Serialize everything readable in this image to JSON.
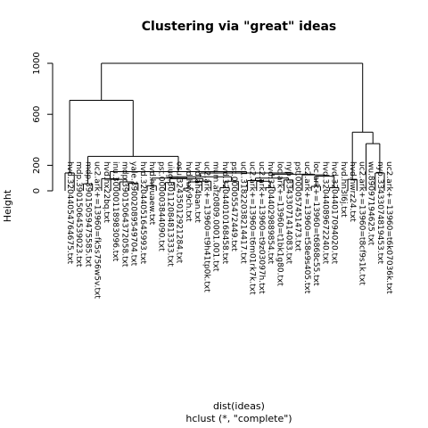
{
  "chart_data": {
    "type": "dendrogram",
    "title": "Clustering via \"great\" ideas",
    "ylabel": "Height",
    "xlabel_line1": "dist(ideas)",
    "xlabel_line2": "hclust (*, \"complete\")",
    "ylim": [
      0,
      1000
    ],
    "yticks": [
      0,
      200,
      600,
      1000
    ],
    "leaves": [
      "hvd.32044054764675.txt",
      "mdp.39015064539023.txt",
      "mdp.39015059475585.txt",
      "uc2.ark+=13960=fk5s756w5v.txt",
      "hvd.hx22bq.txt",
      "inu.30000118983096.txt",
      "mdp.39015064372058.txt",
      "yale.39002089549704.txt",
      "hvd.32044051645993.txt",
      "hvd.hwuaew.txt",
      "pst.000003844090.txt",
      "uiug.30112084813333.txt",
      "osu.32435012921284.txt",
      "hvd.hxy9ch.txt",
      "hvd.ah4ban.txt",
      "uc2.ark+=13960=t9h41tp0k.txt",
      "mum.afz0809.0001.001.txt",
      "hvd.32044010168458.txt",
      "pst.000055472449.txt",
      "uc1.31822038214417.txt",
      "uc2.ark+=13960=t6m01rk7k.txt",
      "uc2.ark+=13960=t9z03097h.txt",
      "hvd.32044029889854.txt",
      "loc.ark+=13960=t1bk1g80.txt",
      "nyp.33433071414083.txt",
      "pst.000057451473.txt",
      "uc2.ark+=13960=t58e9s405.txt",
      "loc.ark+=13960=t6868c55.txt",
      "hvd.32044089672240.txt",
      "hvd.32044017094020.txt",
      "hvd.hn3l6j.txt",
      "hvd.hwrz24.txt",
      "uc2.ark+=13960=t8cf9s1k.txt",
      "wu.89097194625.txt",
      "nyp.33433074819453.txt",
      "uc2.ark+=13960=t6k07036k.txt"
    ],
    "merges": [
      {
        "left": 0,
        "right": 1,
        "height": 140
      },
      {
        "left": 2,
        "right": 3,
        "height": 55
      },
      {
        "left": 9,
        "right": 10,
        "height": 40
      },
      {
        "left": 13,
        "right": 14,
        "height": 20
      },
      {
        "left": 17,
        "right": 18,
        "height": 25
      },
      {
        "left": 22,
        "right": 23,
        "height": 25
      },
      {
        "left": 27,
        "right": 28,
        "height": 35
      },
      {
        "left": 29,
        "right": 30,
        "height": 25
      },
      {
        "left": 31,
        "right": 32,
        "height": 90
      },
      {
        "left": 34,
        "right": 35,
        "height": 140
      },
      {
        "left": 7,
        "right": 8,
        "height": 60
      },
      {
        "left": 6,
        "right": 46,
        "height": 70
      },
      {
        "left": 5,
        "right": 47,
        "height": 90
      },
      {
        "left": 4,
        "right": 48,
        "height": 95
      },
      {
        "left": 11,
        "right": 12,
        "height": 65
      },
      {
        "left": 39,
        "right": 15,
        "height": 70
      },
      {
        "left": 51,
        "right": 16,
        "height": 75
      },
      {
        "left": 50,
        "right": 52,
        "height": 95
      },
      {
        "left": 38,
        "right": 53,
        "height": 100
      },
      {
        "left": 19,
        "right": 40,
        "height": 75
      },
      {
        "left": 54,
        "right": 55,
        "height": 110
      },
      {
        "left": 21,
        "right": 41,
        "height": 75
      },
      {
        "left": 20,
        "right": 57,
        "height": 80
      },
      {
        "left": 24,
        "right": 25,
        "height": 85
      },
      {
        "left": 58,
        "right": 59,
        "height": 100
      },
      {
        "left": 42,
        "right": 43,
        "height": 115
      },
      {
        "left": 26,
        "right": 61,
        "height": 125
      },
      {
        "left": 60,
        "right": 62,
        "height": 130
      },
      {
        "left": 56,
        "right": 63,
        "height": 140
      },
      {
        "left": 49,
        "right": 64,
        "height": 150
      },
      {
        "left": 37,
        "right": 65,
        "height": 270
      },
      {
        "left": 36,
        "right": 66,
        "height": 710
      },
      {
        "left": 33,
        "right": 45,
        "height": 370
      },
      {
        "left": 44,
        "right": 68,
        "height": 460
      },
      {
        "left": 67,
        "right": 69,
        "height": 1000
      }
    ]
  }
}
